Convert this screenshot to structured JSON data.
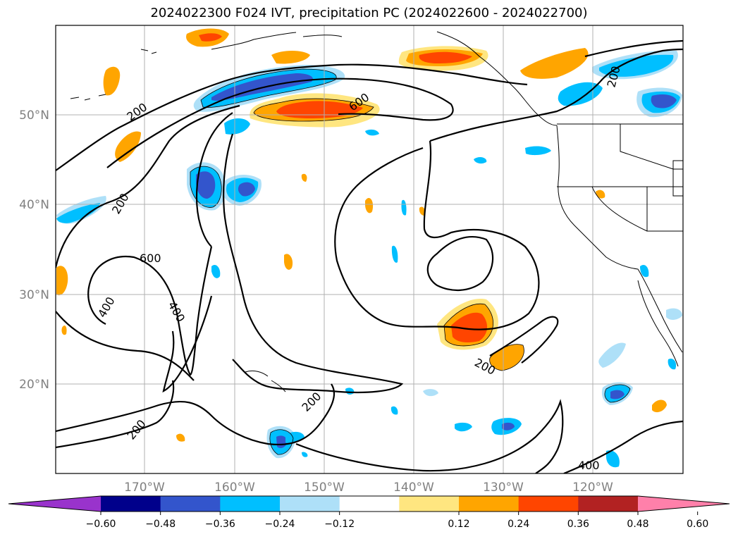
{
  "title": "2024022300 F024 IVT, precipitation PC (2024022600 - 2024022700)",
  "map": {
    "lon_ticks": [
      "170°W",
      "160°W",
      "150°W",
      "140°W",
      "130°W",
      "120°W"
    ],
    "lat_ticks": [
      "50°N",
      "40°N",
      "30°N",
      "20°N"
    ],
    "contour_labels": [
      "200",
      "200",
      "200",
      "200",
      "200",
      "200",
      "400",
      "400",
      "400",
      "600",
      "600"
    ]
  },
  "colorbar": {
    "tick_labels": [
      "−0.60",
      "−0.48",
      "−0.36",
      "−0.24",
      "−0.12",
      "0.12",
      "0.24",
      "0.36",
      "0.48",
      "0.60"
    ],
    "colors": [
      "#9933cc",
      "#00008b",
      "#3355cc",
      "#00bfff",
      "#aee0f8",
      "#ffffff",
      "#ffe680",
      "#ffa500",
      "#ff4500",
      "#b22222",
      "#ff80aa"
    ]
  },
  "colors": {
    "orange": "#ffa500",
    "red_orange": "#ff4500",
    "light_yellow": "#ffe680",
    "light_blue": "#aee0f8",
    "sky_blue": "#00bfff",
    "royal_blue": "#3355cc"
  }
}
